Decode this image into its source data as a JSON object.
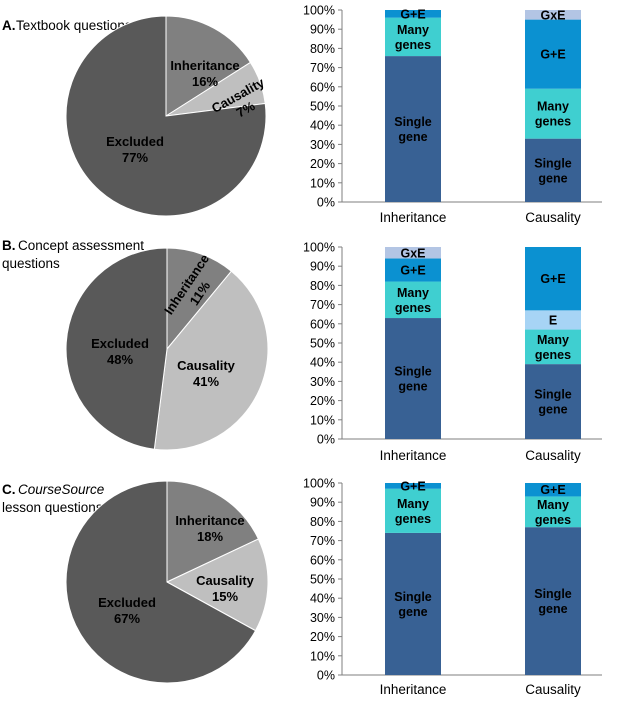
{
  "colors": {
    "single_gene": "#386194",
    "many_genes": "#3FCFD0",
    "g_plus_e": "#0B91D1",
    "e": "#A7D4F5",
    "gxe": "#B3C5E4",
    "pie_excluded": "#595959",
    "pie_inheritance": "#808080",
    "pie_causality": "#BFBFBF",
    "axis": "#7F7F7F"
  },
  "chart_data": [
    {
      "type": "pie",
      "panel": "A",
      "title_prefix": "A.",
      "title": "Textbook questions",
      "slices": [
        {
          "label": "Inheritance",
          "value": 16,
          "pct_label": "16%",
          "color": "#808080"
        },
        {
          "label": "Causality",
          "value": 7,
          "pct_label": "7%",
          "color": "#BFBFBF"
        },
        {
          "label": "Excluded",
          "value": 77,
          "pct_label": "77%",
          "color": "#595959"
        }
      ]
    },
    {
      "type": "bar",
      "stacked": true,
      "panel": "A",
      "categories": [
        "Inheritance",
        "Causality"
      ],
      "ylim": [
        0,
        100
      ],
      "yticks": [
        "0%",
        "10%",
        "20%",
        "30%",
        "40%",
        "50%",
        "60%",
        "70%",
        "80%",
        "90%",
        "100%"
      ],
      "series": [
        {
          "name": "Single gene",
          "label_lines": [
            "Single",
            "gene"
          ],
          "color": "#386194",
          "values": [
            76,
            33
          ]
        },
        {
          "name": "Many genes",
          "label_lines": [
            "Many",
            "genes"
          ],
          "color": "#3FCFD0",
          "values": [
            20,
            26
          ]
        },
        {
          "name": "G+E",
          "label_lines": [
            "G+E"
          ],
          "color": "#0B91D1",
          "values": [
            4,
            36
          ]
        },
        {
          "name": "GxE",
          "label_lines": [
            "GxE"
          ],
          "color": "#B3C5E4",
          "values": [
            0,
            5
          ]
        }
      ]
    },
    {
      "type": "pie",
      "panel": "B",
      "title_prefix": "B.",
      "title": "Concept assessment",
      "title_line2": "questions",
      "slices": [
        {
          "label": "Inheritance",
          "value": 11,
          "pct_label": "11%",
          "color": "#808080"
        },
        {
          "label": "Causality",
          "value": 41,
          "pct_label": "41%",
          "color": "#BFBFBF"
        },
        {
          "label": "Excluded",
          "value": 48,
          "pct_label": "48%",
          "color": "#595959"
        }
      ]
    },
    {
      "type": "bar",
      "stacked": true,
      "panel": "B",
      "categories": [
        "Inheritance",
        "Causality"
      ],
      "ylim": [
        0,
        100
      ],
      "yticks": [
        "0%",
        "10%",
        "20%",
        "30%",
        "40%",
        "50%",
        "60%",
        "70%",
        "80%",
        "90%",
        "100%"
      ],
      "series": [
        {
          "name": "Single gene",
          "label_lines": [
            "Single",
            "gene"
          ],
          "color": "#386194",
          "values": [
            63,
            39
          ]
        },
        {
          "name": "Many genes",
          "label_lines": [
            "Many",
            "genes"
          ],
          "color": "#3FCFD0",
          "values": [
            19,
            18
          ]
        },
        {
          "name": "E",
          "label_lines": [
            "E"
          ],
          "color": "#A7D4F5",
          "values": [
            0,
            10
          ]
        },
        {
          "name": "G+E",
          "label_lines": [
            "G+E"
          ],
          "color": "#0B91D1",
          "values": [
            12,
            33
          ]
        },
        {
          "name": "GxE",
          "label_lines": [
            "GxE"
          ],
          "color": "#B3C5E4",
          "values": [
            6,
            0
          ]
        }
      ]
    },
    {
      "type": "pie",
      "panel": "C",
      "title_prefix": "C.",
      "title_italic": "CourseSource",
      "title_line2": "lesson questions",
      "slices": [
        {
          "label": "Inheritance",
          "value": 18,
          "pct_label": "18%",
          "color": "#808080"
        },
        {
          "label": "Causality",
          "value": 15,
          "pct_label": "15%",
          "color": "#BFBFBF"
        },
        {
          "label": "Excluded",
          "value": 67,
          "pct_label": "67%",
          "color": "#595959"
        }
      ]
    },
    {
      "type": "bar",
      "stacked": true,
      "panel": "C",
      "categories": [
        "Inheritance",
        "Causality"
      ],
      "ylim": [
        0,
        100
      ],
      "yticks": [
        "0%",
        "10%",
        "20%",
        "30%",
        "40%",
        "50%",
        "60%",
        "70%",
        "80%",
        "90%",
        "100%"
      ],
      "series": [
        {
          "name": "Single gene",
          "label_lines": [
            "Single",
            "gene"
          ],
          "color": "#386194",
          "values": [
            74,
            77
          ]
        },
        {
          "name": "Many genes",
          "label_lines": [
            "Many",
            "genes"
          ],
          "color": "#3FCFD0",
          "values": [
            23,
            16
          ]
        },
        {
          "name": "G+E",
          "label_lines": [
            "G+E"
          ],
          "color": "#0B91D1",
          "values": [
            3,
            7
          ]
        }
      ]
    }
  ]
}
